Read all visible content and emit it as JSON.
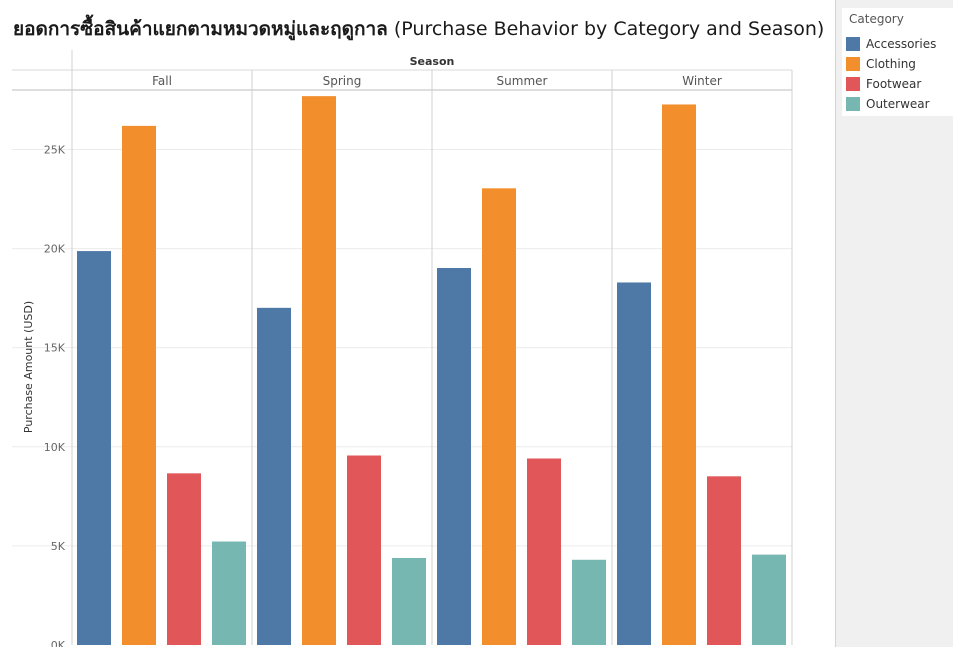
{
  "title_thai": "ยอดการซื้อสินค้าแยกตามหมวดหมู่และฤดูกาล",
  "title_en": "(Purchase Behavior by Category and Season)",
  "legend": {
    "title": "Category",
    "items": [
      {
        "label": "Accessories",
        "color": "#4e79a7"
      },
      {
        "label": "Clothing",
        "color": "#f28e2b"
      },
      {
        "label": "Footwear",
        "color": "#e15759"
      },
      {
        "label": "Outerwear",
        "color": "#76b7b2"
      }
    ]
  },
  "chart_data": {
    "type": "bar",
    "column_header": "Season",
    "categories": [
      "Fall",
      "Spring",
      "Summer",
      "Winter"
    ],
    "ylabel": "Purchase Amount (USD)",
    "ylim": [
      0,
      28000
    ],
    "yticks": [
      0,
      5000,
      10000,
      15000,
      20000,
      25000
    ],
    "ytick_labels": [
      "0K",
      "5K",
      "10K",
      "15K",
      "20K",
      "25K"
    ],
    "grid": true,
    "legend_position": "right",
    "series": [
      {
        "name": "Accessories",
        "color": "#4e79a7",
        "values": [
          19874,
          17010,
          19020,
          18290
        ]
      },
      {
        "name": "Clothing",
        "color": "#f28e2b",
        "values": [
          26190,
          27690,
          23040,
          27270
        ]
      },
      {
        "name": "Footwear",
        "color": "#e15759",
        "values": [
          8660,
          9560,
          9410,
          8510
        ]
      },
      {
        "name": "Outerwear",
        "color": "#76b7b2",
        "values": [
          5220,
          4390,
          4300,
          4560
        ]
      }
    ]
  }
}
